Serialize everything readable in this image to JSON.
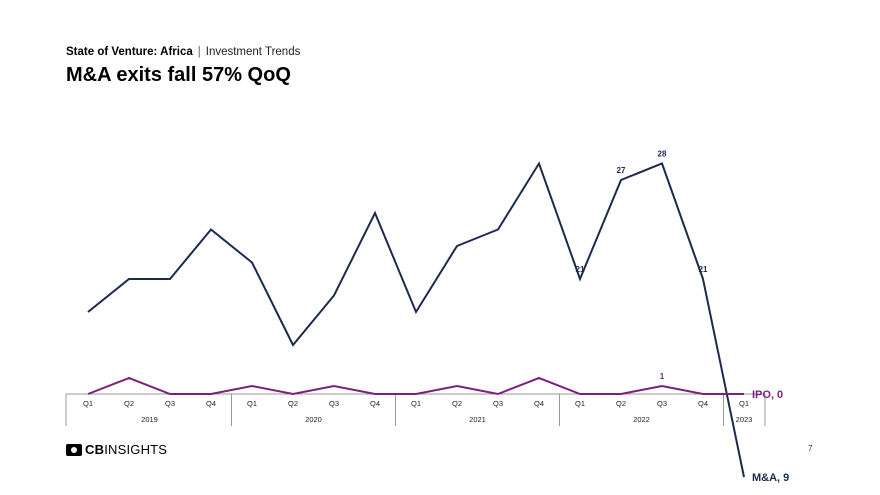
{
  "header": {
    "report_title": "State of Venture: Africa",
    "separator": "|",
    "section": "Investment Trends"
  },
  "title": "M&A exits fall 57% QoQ",
  "chart_data": {
    "type": "line",
    "quarters": [
      "Q1",
      "Q2",
      "Q3",
      "Q4",
      "Q1",
      "Q2",
      "Q3",
      "Q4",
      "Q1",
      "Q2",
      "Q3",
      "Q4",
      "Q1",
      "Q2",
      "Q3",
      "Q4",
      "Q1"
    ],
    "years": [
      {
        "label": "2019",
        "count": 4
      },
      {
        "label": "2020",
        "count": 4
      },
      {
        "label": "2021",
        "count": 4
      },
      {
        "label": "2022",
        "count": 4
      },
      {
        "label": "2023",
        "count": 1
      }
    ],
    "series": [
      {
        "name": "M&A",
        "color": "#1b2a4e",
        "values": [
          19,
          21,
          21,
          24,
          22,
          17,
          20,
          25,
          19,
          23,
          24,
          28,
          21,
          27,
          28,
          21,
          9
        ],
        "data_labels": {
          "12": "21",
          "13": "27",
          "14": "28",
          "15": "21"
        },
        "end_label": "M&A, 9"
      },
      {
        "name": "IPO",
        "color": "#7b1f7e",
        "values": [
          0,
          1,
          0,
          0,
          0.5,
          0,
          0.5,
          0,
          0,
          0.5,
          0,
          1,
          0,
          0,
          0.5,
          0,
          0
        ],
        "data_labels": {
          "14": "1"
        },
        "end_label": "IPO, 0"
      }
    ]
  },
  "footer": {
    "logo_brand": "CB",
    "logo_rest": "INSIGHTS",
    "page_number": "7"
  }
}
